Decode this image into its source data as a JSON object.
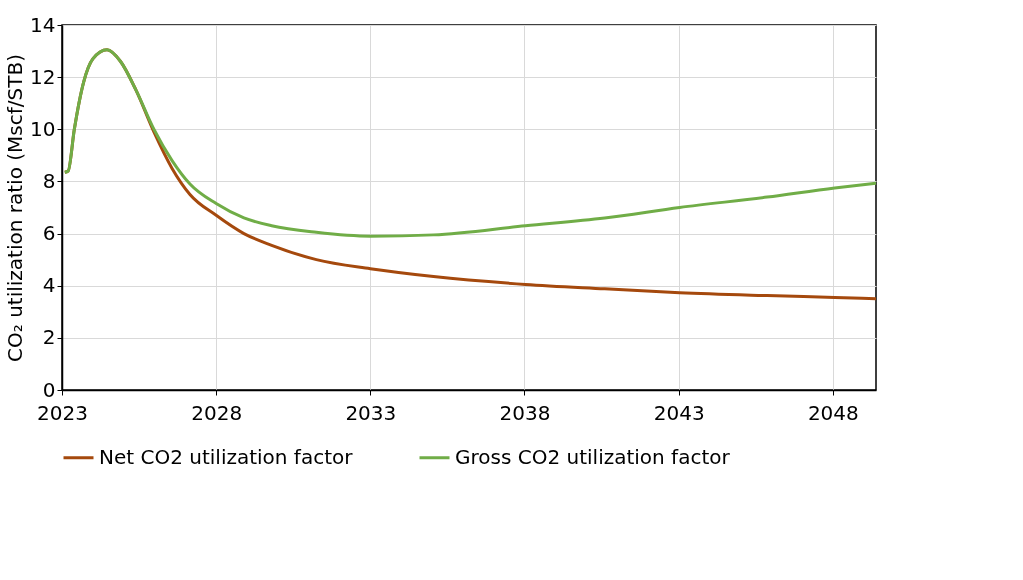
{
  "chart_data": {
    "type": "line",
    "ylabel": "CO₂ utilization ratio (Mscf/STB)",
    "xlim": [
      2023,
      2049.4
    ],
    "xticks": [
      2023,
      2028,
      2033,
      2038,
      2043,
      2048
    ],
    "ylim": [
      0,
      14
    ],
    "yticks": [
      0,
      2,
      4,
      6,
      8,
      10,
      12,
      14
    ],
    "grid": true,
    "legend": "bottom",
    "marker": "none",
    "line_style": "solid",
    "series": [
      {
        "name": "Net CO2 utilization factor",
        "color": "#a5490d",
        "x": [
          2023.09,
          2023.2,
          2023.4,
          2023.7,
          2024.0,
          2024.46,
          2024.9,
          2025.4,
          2025.98,
          2026.57,
          2027.15,
          2028.0,
          2028.9,
          2029.8,
          2031.25,
          2033.0,
          2035.05,
          2038.03,
          2040.6,
          2043.03,
          2045.87,
          2048.06,
          2049.4
        ],
        "values": [
          8.35,
          8.4,
          10.0,
          11.8,
          12.7,
          13.05,
          12.6,
          11.5,
          9.9,
          8.5,
          7.5,
          6.7,
          6.0,
          5.55,
          5.0,
          4.65,
          4.35,
          4.05,
          3.88,
          3.73,
          3.62,
          3.55,
          3.5
        ]
      },
      {
        "name": "Gross CO2 utilization factor",
        "color": "#70ad47",
        "x": [
          2023.09,
          2023.2,
          2023.4,
          2023.7,
          2024.0,
          2024.46,
          2024.9,
          2025.4,
          2025.98,
          2026.57,
          2027.15,
          2028.0,
          2028.9,
          2029.8,
          2031.25,
          2033.0,
          2035.05,
          2038.03,
          2040.6,
          2043.03,
          2045.87,
          2048.06,
          2049.4
        ],
        "values": [
          8.35,
          8.4,
          10.0,
          11.8,
          12.7,
          13.05,
          12.6,
          11.5,
          10.0,
          8.8,
          7.9,
          7.15,
          6.6,
          6.3,
          6.05,
          5.9,
          5.95,
          6.3,
          6.6,
          7.0,
          7.4,
          7.75,
          7.93
        ]
      }
    ]
  }
}
